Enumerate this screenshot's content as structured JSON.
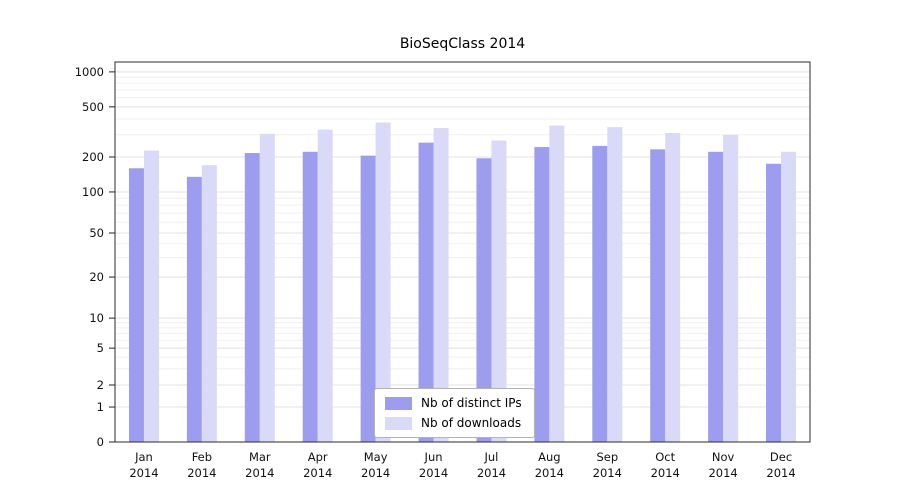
{
  "chart_data": {
    "type": "bar",
    "title": "BioSeqClass 2014",
    "categories": [
      "Jan",
      "Feb",
      "Mar",
      "Apr",
      "May",
      "Jun",
      "Jul",
      "Aug",
      "Sep",
      "Oct",
      "Nov",
      "Dec"
    ],
    "category_year": "2014",
    "series": [
      {
        "name": "Nb of distinct IPs",
        "color": "#9d9df0",
        "values": [
          160,
          135,
          215,
          220,
          205,
          260,
          195,
          240,
          245,
          230,
          220,
          175
        ]
      },
      {
        "name": "Nb of downloads",
        "color": "#d9d9f8",
        "values": [
          225,
          170,
          305,
          330,
          375,
          340,
          270,
          355,
          345,
          310,
          300,
          220
        ]
      }
    ],
    "xlabel": "",
    "ylabel": "",
    "y_scale": "log",
    "y_ticks": [
      0,
      1,
      2,
      5,
      10,
      20,
      50,
      100,
      200,
      500,
      1000
    ],
    "ylim": [
      0,
      1000
    ],
    "grid": "on",
    "legend_position": "bottom-center"
  }
}
